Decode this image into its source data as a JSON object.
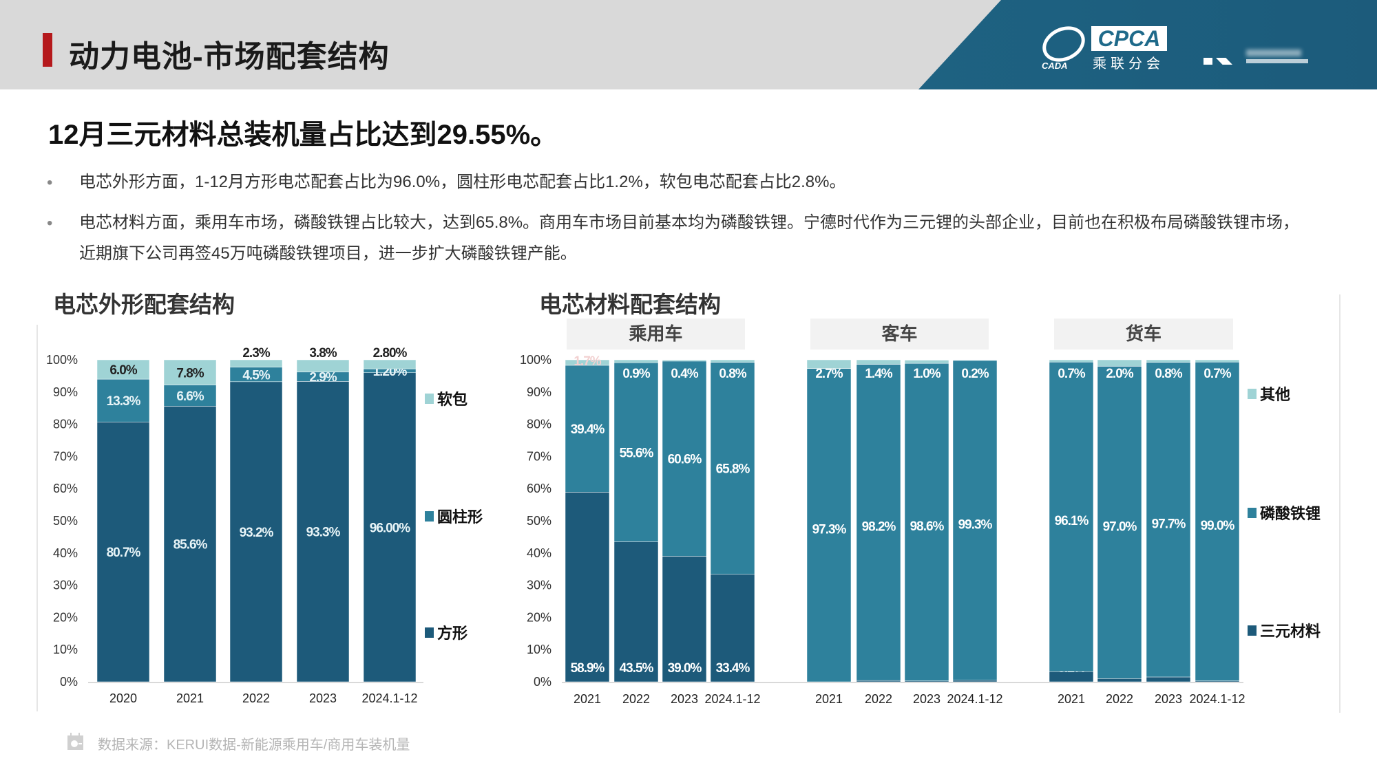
{
  "header": {
    "title": "动力电池-市场配套结构",
    "logo_text": "CPCA",
    "logo_cn": "乘联分会",
    "logo_sub": "CADA"
  },
  "headline": "12月三元材料总装机量占比达到29.55%。",
  "bullets": [
    "电芯外形方面，1-12月方形电芯配套占比为96.0%，圆柱形电芯配套占比1.2%，软包电芯配套占比2.8%。",
    "电芯材料方面，乘用车市场，磷酸铁锂占比较大，达到65.8%。商用车市场目前基本均为磷酸铁锂。宁德时代作为三元锂的头部企业，目前也在积极布局磷酸铁锂市场，近期旗下公司再签45万吨磷酸铁锂项目，进一步扩大磷酸铁锂产能。"
  ],
  "bullet_mark": "•",
  "footer": {
    "text": "数据来源：KERUI数据-新能源乘用车/商用车装机量",
    "icon": "calendar-chart-icon"
  },
  "colors": {
    "dark": "#1d5a7a",
    "mid": "#2e819c",
    "light": "#9fd3d5",
    "axis": "#d9d9d9",
    "accent": "#b5191c"
  },
  "chart_data": [
    {
      "type": "bar",
      "stacked": true,
      "title": "电芯外形配套结构",
      "ylim": [
        0,
        100
      ],
      "yticks": [
        "0%",
        "10%",
        "20%",
        "30%",
        "40%",
        "50%",
        "60%",
        "70%",
        "80%",
        "90%",
        "100%"
      ],
      "categories": [
        "2020",
        "2021",
        "2022",
        "2023",
        "2024.1-12"
      ],
      "legend_position": "right",
      "series": [
        {
          "name": "方形",
          "color": "dark",
          "values": [
            80.7,
            85.6,
            93.2,
            93.3,
            96.0
          ],
          "labels": [
            "80.7%",
            "85.6%",
            "93.2%",
            "93.3%",
            "96.00%"
          ]
        },
        {
          "name": "圆柱形",
          "color": "mid",
          "values": [
            13.3,
            6.6,
            4.5,
            2.9,
            1.2
          ],
          "labels": [
            "13.3%",
            "6.6%",
            "4.5%",
            "2.9%",
            "1.20%"
          ]
        },
        {
          "name": "软包",
          "color": "light",
          "values": [
            6.0,
            7.8,
            2.3,
            3.8,
            2.8
          ],
          "labels": [
            "6.0%",
            "7.8%",
            "2.3%",
            "3.8%",
            "2.80%"
          ]
        }
      ]
    },
    {
      "type": "bar",
      "stacked": true,
      "title": "电芯材料配套结构",
      "ylim": [
        0,
        100
      ],
      "yticks": [
        "0%",
        "10%",
        "20%",
        "30%",
        "40%",
        "50%",
        "60%",
        "70%",
        "80%",
        "90%",
        "100%"
      ],
      "legend_position": "right",
      "legend": [
        "其他",
        "磷酸铁锂",
        "三元材料"
      ],
      "panels": [
        {
          "name": "乘用车",
          "categories": [
            "2021",
            "2022",
            "2023",
            "2024.1-12"
          ],
          "series": [
            {
              "name": "三元材料",
              "color": "dark",
              "values": [
                58.9,
                43.5,
                39.0,
                33.4
              ],
              "labels": [
                "58.9%",
                "43.5%",
                "39.0%",
                "33.4%"
              ]
            },
            {
              "name": "磷酸铁锂",
              "color": "mid",
              "values": [
                39.4,
                55.6,
                60.6,
                65.8
              ],
              "labels": [
                "39.4%",
                "55.6%",
                "60.6%",
                "65.8%"
              ]
            },
            {
              "name": "其他",
              "color": "light",
              "values": [
                1.7,
                0.9,
                0.4,
                0.8
              ],
              "labels": [
                "1.7%",
                "0.9%",
                "0.4%",
                "0.8%"
              ]
            }
          ]
        },
        {
          "name": "客车",
          "categories": [
            "2021",
            "2022",
            "2023",
            "2024.1-12"
          ],
          "series": [
            {
              "name": "三元材料",
              "color": "dark",
              "values": [
                0,
                0.4,
                0.3,
                0.5
              ],
              "labels": [
                "",
                "0.4%",
                "0.3%",
                "0.5%"
              ]
            },
            {
              "name": "磷酸铁锂",
              "color": "mid",
              "values": [
                97.3,
                98.2,
                98.6,
                99.3
              ],
              "labels": [
                "97.3%",
                "98.2%",
                "98.6%",
                "99.3%"
              ]
            },
            {
              "name": "其他",
              "color": "light",
              "values": [
                2.7,
                1.4,
                1.0,
                0.2
              ],
              "labels": [
                "2.7%",
                "1.4%",
                "1.0%",
                "0.2%"
              ]
            }
          ]
        },
        {
          "name": "货车",
          "categories": [
            "2021",
            "2022",
            "2023",
            "2024.1-12"
          ],
          "series": [
            {
              "name": "三元材料",
              "color": "dark",
              "values": [
                3.2,
                1.0,
                1.5,
                0.3
              ],
              "labels": [
                "3.2%",
                "1.0%",
                "1.5%",
                "0.3%"
              ]
            },
            {
              "name": "磷酸铁锂",
              "color": "mid",
              "values": [
                96.1,
                97.0,
                97.7,
                99.0
              ],
              "labels": [
                "96.1%",
                "97.0%",
                "97.7%",
                "99.0%"
              ]
            },
            {
              "name": "其他",
              "color": "light",
              "values": [
                0.7,
                2.0,
                0.8,
                0.7
              ],
              "labels": [
                "0.7%",
                "2.0%",
                "0.8%",
                "0.7%"
              ]
            }
          ]
        }
      ]
    }
  ]
}
